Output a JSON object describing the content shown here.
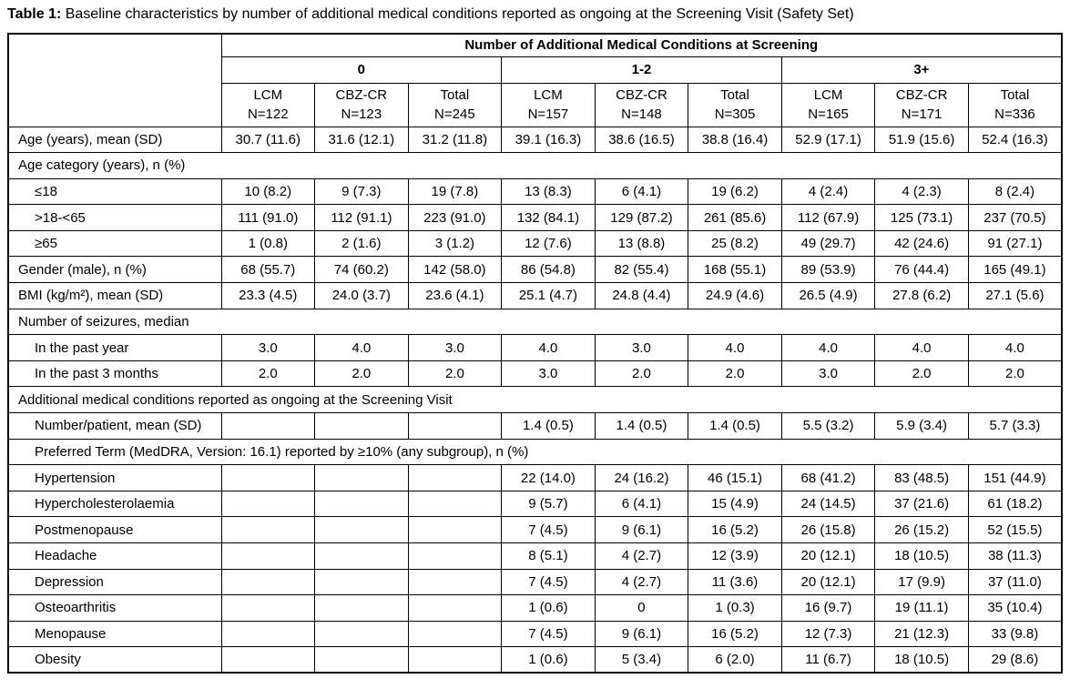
{
  "title": {
    "label": "Table 1:",
    "text": "Baseline characteristics by number of additional medical conditions reported as ongoing at the Screening Visit (Safety Set)"
  },
  "colors": {
    "border": "#000000",
    "text": "#000000",
    "background": "#ffffff"
  },
  "table": {
    "span_header": "Number of Additional Medical Conditions at Screening",
    "groups": [
      {
        "label": "0",
        "cols": [
          {
            "arm": "LCM",
            "n": "N=122"
          },
          {
            "arm": "CBZ-CR",
            "n": "N=123"
          },
          {
            "arm": "Total",
            "n": "N=245"
          }
        ]
      },
      {
        "label": "1-2",
        "cols": [
          {
            "arm": "LCM",
            "n": "N=157"
          },
          {
            "arm": "CBZ-CR",
            "n": "N=148"
          },
          {
            "arm": "Total",
            "n": "N=305"
          }
        ]
      },
      {
        "label": "3+",
        "cols": [
          {
            "arm": "LCM",
            "n": "N=165"
          },
          {
            "arm": "CBZ-CR",
            "n": "N=171"
          },
          {
            "arm": "Total",
            "n": "N=336"
          }
        ]
      }
    ],
    "rows": [
      {
        "type": "data",
        "indent": 0,
        "label": "Age (years), mean (SD)",
        "cells": [
          "30.7 (11.6)",
          "31.6 (12.1)",
          "31.2 (11.8)",
          "39.1 (16.3)",
          "38.6 (16.5)",
          "38.8 (16.4)",
          "52.9 (17.1)",
          "51.9 (15.6)",
          "52.4 (16.3)"
        ]
      },
      {
        "type": "section",
        "indent": 0,
        "label": "Age category (years), n (%)"
      },
      {
        "type": "data",
        "indent": 1,
        "label": "≤18",
        "cells": [
          "10 (8.2)",
          "9 (7.3)",
          "19 (7.8)",
          "13 (8.3)",
          "6 (4.1)",
          "19 (6.2)",
          "4 (2.4)",
          "4 (2.3)",
          "8 (2.4)"
        ]
      },
      {
        "type": "data",
        "indent": 1,
        "label": ">18-<65",
        "cells": [
          "111 (91.0)",
          "112 (91.1)",
          "223 (91.0)",
          "132 (84.1)",
          "129 (87.2)",
          "261 (85.6)",
          "112 (67.9)",
          "125 (73.1)",
          "237 (70.5)"
        ]
      },
      {
        "type": "data",
        "indent": 1,
        "label": "≥65",
        "cells": [
          "1 (0.8)",
          "2 (1.6)",
          "3 (1.2)",
          "12 (7.6)",
          "13 (8.8)",
          "25 (8.2)",
          "49 (29.7)",
          "42 (24.6)",
          "91 (27.1)"
        ]
      },
      {
        "type": "data",
        "indent": 0,
        "label": "Gender (male), n (%)",
        "cells": [
          "68 (55.7)",
          "74 (60.2)",
          "142 (58.0)",
          "86 (54.8)",
          "82 (55.4)",
          "168 (55.1)",
          "89 (53.9)",
          "76 (44.4)",
          "165 (49.1)"
        ]
      },
      {
        "type": "data",
        "indent": 0,
        "label": "BMI (kg/m²), mean (SD)",
        "cells": [
          "23.3 (4.5)",
          "24.0 (3.7)",
          "23.6 (4.1)",
          "25.1 (4.7)",
          "24.8 (4.4)",
          "24.9 (4.6)",
          "26.5 (4.9)",
          "27.8 (6.2)",
          "27.1 (5.6)"
        ]
      },
      {
        "type": "section",
        "indent": 0,
        "label": "Number of seizures, median"
      },
      {
        "type": "data",
        "indent": 1,
        "label": "In the past year",
        "cells": [
          "3.0",
          "4.0",
          "3.0",
          "4.0",
          "3.0",
          "4.0",
          "4.0",
          "4.0",
          "4.0"
        ]
      },
      {
        "type": "data",
        "indent": 1,
        "label": "In the past 3 months",
        "cells": [
          "2.0",
          "2.0",
          "2.0",
          "3.0",
          "2.0",
          "2.0",
          "3.0",
          "2.0",
          "2.0"
        ]
      },
      {
        "type": "section",
        "indent": 0,
        "label": "Additional medical conditions reported as ongoing at the Screening Visit"
      },
      {
        "type": "data",
        "indent": 1,
        "label": "Number/patient, mean (SD)",
        "cells": [
          "",
          "",
          "",
          "1.4 (0.5)",
          "1.4 (0.5)",
          "1.4 (0.5)",
          "5.5 (3.2)",
          "5.9 (3.4)",
          "5.7 (3.3)"
        ]
      },
      {
        "type": "section",
        "indent": 1,
        "label": "Preferred Term (MedDRA, Version: 16.1) reported by ≥10% (any subgroup), n (%)"
      },
      {
        "type": "data",
        "indent": 1,
        "label": "Hypertension",
        "cells": [
          "",
          "",
          "",
          "22 (14.0)",
          "24 (16.2)",
          "46 (15.1)",
          "68 (41.2)",
          "83 (48.5)",
          "151 (44.9)"
        ]
      },
      {
        "type": "data",
        "indent": 1,
        "label": "Hypercholesterolaemia",
        "cells": [
          "",
          "",
          "",
          "9 (5.7)",
          "6 (4.1)",
          "15 (4.9)",
          "24 (14.5)",
          "37 (21.6)",
          "61 (18.2)"
        ]
      },
      {
        "type": "data",
        "indent": 1,
        "label": "Postmenopause",
        "cells": [
          "",
          "",
          "",
          "7 (4.5)",
          "9 (6.1)",
          "16 (5.2)",
          "26 (15.8)",
          "26 (15.2)",
          "52 (15.5)"
        ]
      },
      {
        "type": "data",
        "indent": 1,
        "label": "Headache",
        "cells": [
          "",
          "",
          "",
          "8 (5.1)",
          "4 (2.7)",
          "12 (3.9)",
          "20 (12.1)",
          "18 (10.5)",
          "38 (11.3)"
        ]
      },
      {
        "type": "data",
        "indent": 1,
        "label": "Depression",
        "cells": [
          "",
          "",
          "",
          "7 (4.5)",
          "4 (2.7)",
          "11 (3.6)",
          "20 (12.1)",
          "17 (9.9)",
          "37 (11.0)"
        ]
      },
      {
        "type": "data",
        "indent": 1,
        "label": "Osteoarthritis",
        "cells": [
          "",
          "",
          "",
          "1 (0.6)",
          "0",
          "1 (0.3)",
          "16 (9.7)",
          "19 (11.1)",
          "35 (10.4)"
        ]
      },
      {
        "type": "data",
        "indent": 1,
        "label": "Menopause",
        "cells": [
          "",
          "",
          "",
          "7 (4.5)",
          "9 (6.1)",
          "16 (5.2)",
          "12 (7.3)",
          "21 (12.3)",
          "33 (9.8)"
        ]
      },
      {
        "type": "data",
        "indent": 1,
        "label": "Obesity",
        "cells": [
          "",
          "",
          "",
          "1 (0.6)",
          "5 (3.4)",
          "6 (2.0)",
          "11 (6.7)",
          "18 (10.5)",
          "29 (8.6)"
        ]
      }
    ]
  }
}
